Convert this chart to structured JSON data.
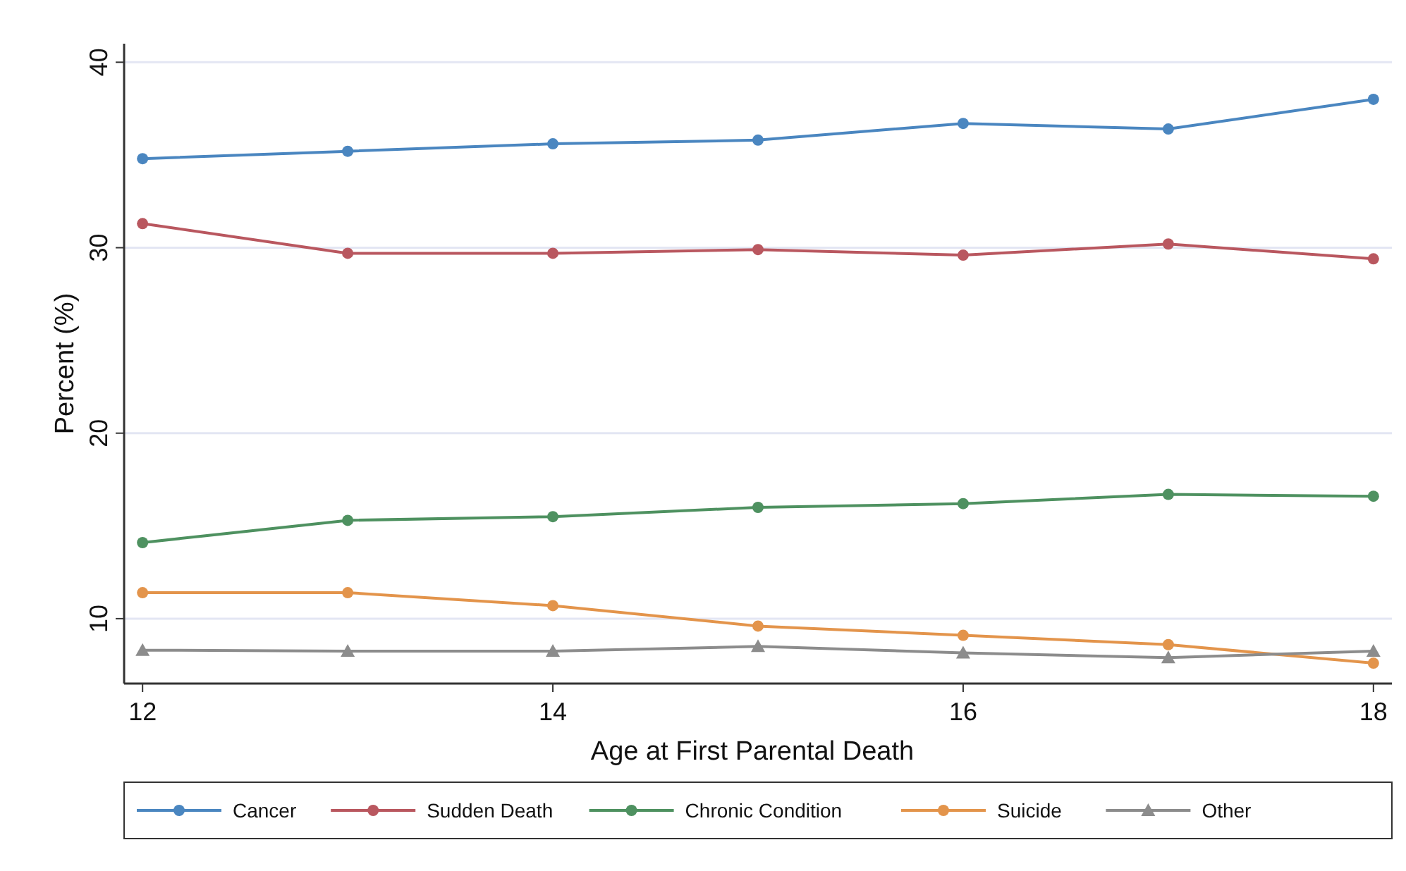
{
  "chart_data": {
    "type": "line",
    "xlabel": "Age at First Parental Death",
    "ylabel": "Percent (%)",
    "x": [
      12,
      13,
      14,
      15,
      16,
      17,
      18
    ],
    "xlim": [
      11.91,
      18.09
    ],
    "xticks": [
      12,
      14,
      16,
      18
    ],
    "ylim": [
      6.5,
      41
    ],
    "yticks": [
      10,
      20,
      30,
      40
    ],
    "grid": "y",
    "legend": "bottom",
    "marker": "circle",
    "line_style": "solid",
    "series": [
      {
        "name": "Cancer",
        "color": "#4a86c0",
        "values": [
          34.8,
          35.2,
          35.6,
          35.8,
          36.7,
          36.4,
          38.0
        ]
      },
      {
        "name": "Sudden Death",
        "color": "#b9575f",
        "values": [
          31.3,
          29.7,
          29.7,
          29.9,
          29.6,
          30.2,
          29.4
        ]
      },
      {
        "name": "Chronic Condition",
        "color": "#4e9160",
        "values": [
          14.1,
          15.3,
          15.5,
          16.0,
          16.2,
          16.7,
          16.6
        ]
      },
      {
        "name": "Suicide",
        "color": "#e3944b",
        "values": [
          11.4,
          11.4,
          10.7,
          9.6,
          9.1,
          8.6,
          7.6
        ]
      },
      {
        "name": "Other",
        "color": "#8c8c8c",
        "marker": "triangle",
        "values": [
          8.3,
          8.25,
          8.25,
          8.5,
          8.15,
          7.9,
          8.25
        ]
      }
    ]
  }
}
